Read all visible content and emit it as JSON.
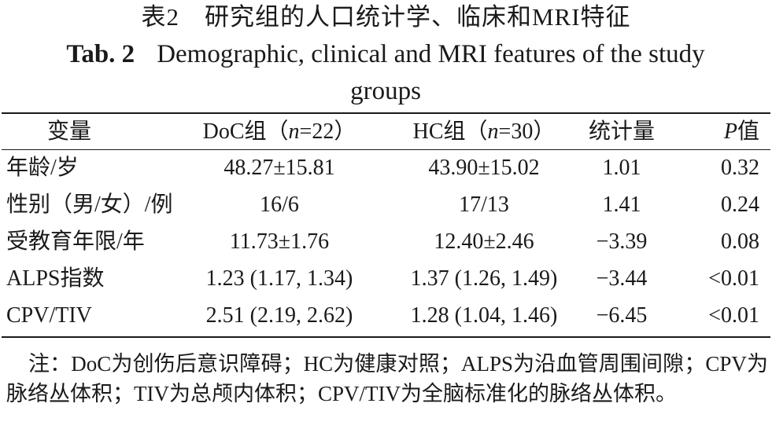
{
  "title_cn": "表2　研究组的人口统计学、临床和MRI特征",
  "title_en_label": "Tab. 2",
  "title_en_text": "Demographic, clinical and MRI features of the study groups",
  "header": {
    "variable": "变量",
    "doc_prefix": "DoC组（",
    "doc_n": "n",
    "doc_suffix": "=22）",
    "hc_prefix": "HC组（",
    "hc_n": "n",
    "hc_suffix": "=30）",
    "statistic": "统计量",
    "p_letter": "P",
    "p_suffix": "值"
  },
  "rows": [
    {
      "variable": "年龄/岁",
      "doc": "48.27±15.81",
      "hc": "43.90±15.02",
      "stat": "1.01",
      "p": "0.32"
    },
    {
      "variable": "性别（男/女）/例",
      "doc": "16/6",
      "hc": "17/13",
      "stat": "1.41",
      "p": "0.24"
    },
    {
      "variable": "受教育年限/年",
      "doc": "11.73±1.76",
      "hc": "12.40±2.46",
      "stat": "−3.39",
      "p": "0.08"
    },
    {
      "variable": "ALPS指数",
      "doc": "1.23 (1.17, 1.34)",
      "hc": "1.37 (1.26, 1.49)",
      "stat": "−3.44",
      "p": "<0.01"
    },
    {
      "variable": "CPV/TIV",
      "doc": "2.51 (2.19, 2.62)",
      "hc": "1.28 (1.04, 1.46)",
      "stat": "−6.45",
      "p": "<0.01"
    }
  ],
  "note": "注：DoC为创伤后意识障碍；HC为健康对照；ALPS为沿血管周围间隙；CPV为脉络丛体积；TIV为总颅内体积；CPV/TIV为全脑标准化的脉络丛体积。"
}
